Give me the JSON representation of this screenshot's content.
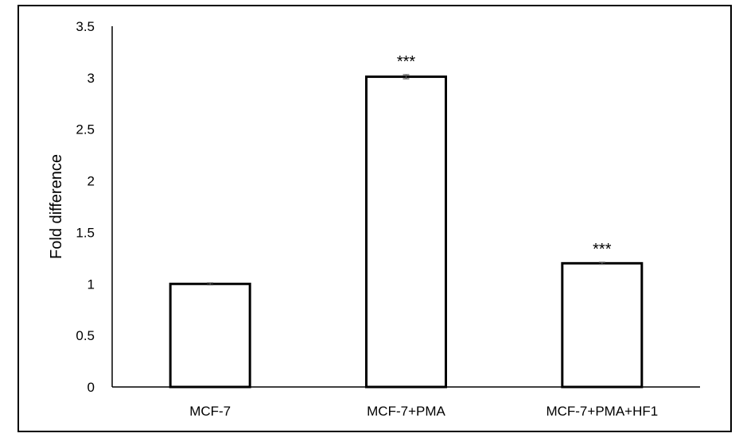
{
  "chart_data": {
    "type": "bar",
    "title": "",
    "xlabel": "",
    "ylabel": "Fold difference",
    "categories": [
      "MCF-7",
      "MCF-7+PMA",
      "MCF-7+PMA+HF1"
    ],
    "values": [
      1.0,
      3.01,
      1.2
    ],
    "error": [
      0.01,
      0.02,
      0.01
    ],
    "annotations": [
      "",
      "***",
      "***"
    ],
    "ylim": [
      0,
      3.5
    ],
    "yticks": [
      "0",
      "0.5",
      "1",
      "1.5",
      "2",
      "2.5",
      "3",
      "3.5"
    ],
    "grid": false,
    "legend": "none",
    "colors": {
      "bar_fill": "#ffffff",
      "bar_stroke": "#000000",
      "axis": "#000000",
      "error_bar": "#555555"
    }
  }
}
